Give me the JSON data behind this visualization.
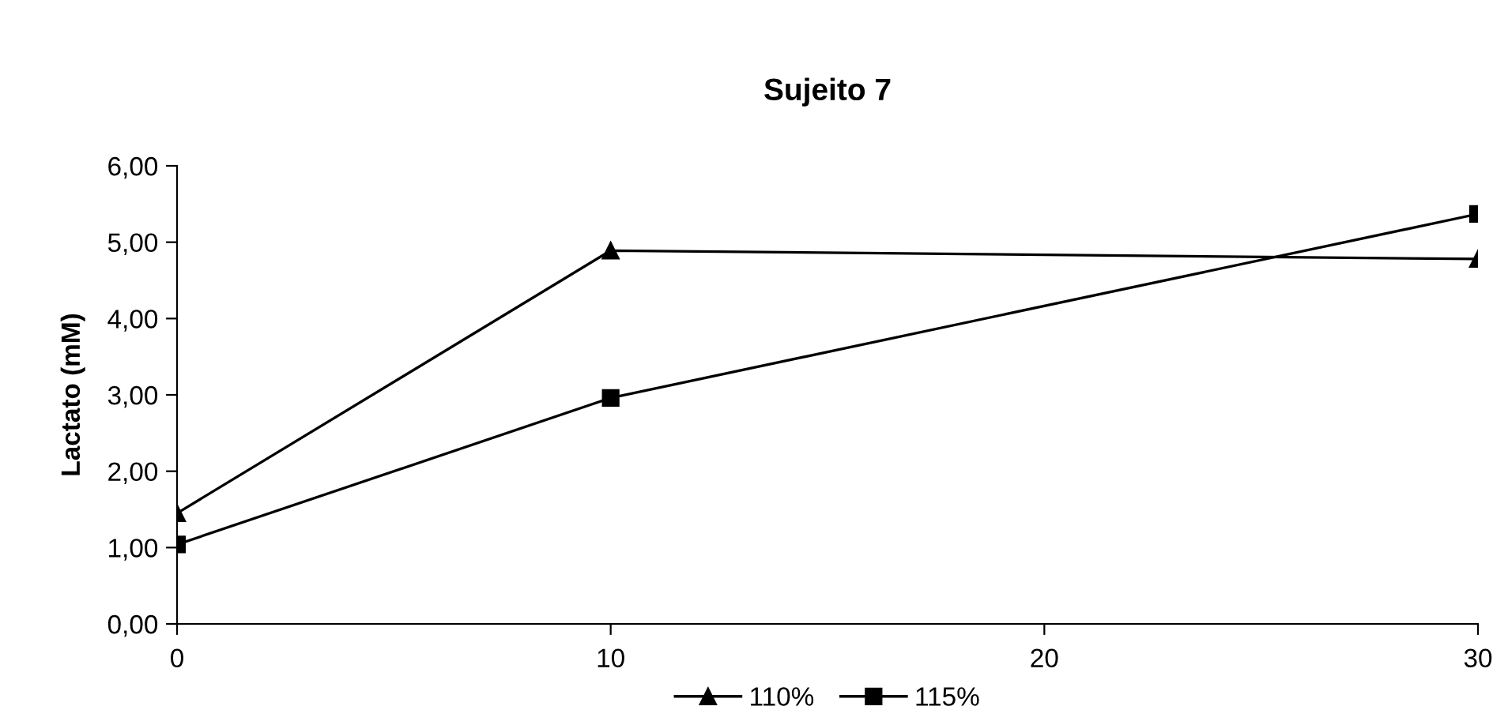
{
  "chart_data": {
    "type": "line",
    "title": "Sujeito 7",
    "ylabel": "Lactato (mM)",
    "x": [
      0,
      10,
      30
    ],
    "series": [
      {
        "name": "110%",
        "color": "#000000",
        "marker": "triangle",
        "values": [
          1.45,
          4.89,
          4.78
        ]
      },
      {
        "name": "115%",
        "color": "#000000",
        "marker": "square",
        "values": [
          1.04,
          2.96,
          5.37
        ]
      }
    ],
    "xlim": [
      0,
      30
    ],
    "xticks": [
      0,
      10,
      20,
      30
    ],
    "ylim": [
      0,
      6
    ],
    "yticks": [
      {
        "value": 0,
        "label": "0,00"
      },
      {
        "value": 1,
        "label": "1,00"
      },
      {
        "value": 2,
        "label": "2,00"
      },
      {
        "value": 3,
        "label": "3,00"
      },
      {
        "value": 4,
        "label": "4,00"
      },
      {
        "value": 5,
        "label": "5,00"
      },
      {
        "value": 6,
        "label": "6,00"
      }
    ],
    "grid": false,
    "legend": "bottom",
    "line_style": "solid"
  }
}
